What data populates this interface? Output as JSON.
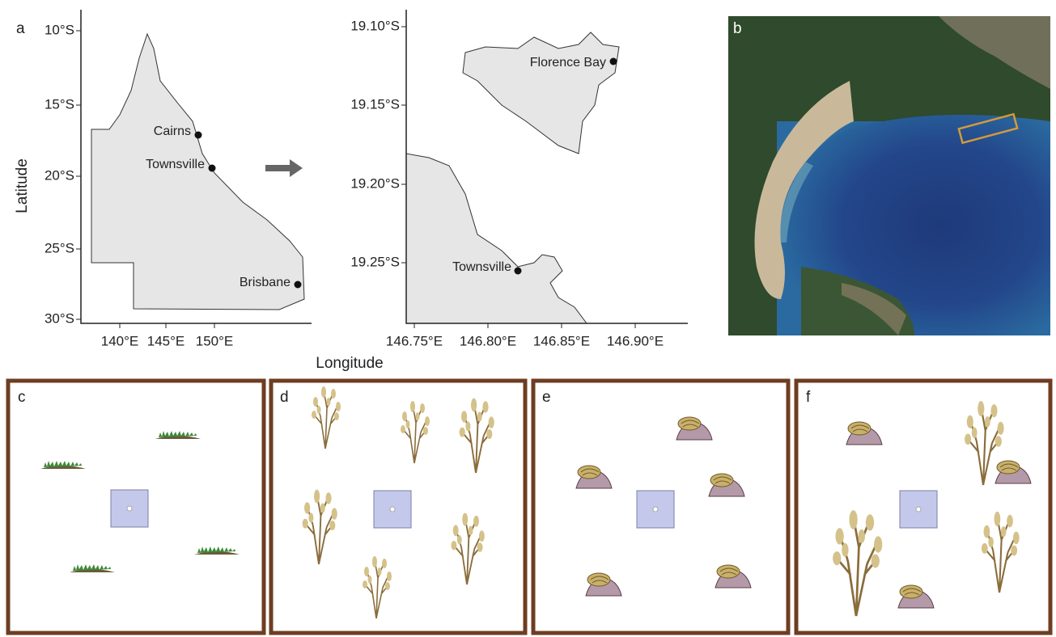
{
  "panel_labels": {
    "a": "a",
    "b": "b",
    "c": "c",
    "d": "d",
    "e": "e",
    "f": "f"
  },
  "map_a": {
    "y_ticks": [
      "10°S",
      "15°S",
      "20°S",
      "25°S",
      "30°S"
    ],
    "x_ticks": [
      "140°E",
      "145°E",
      "150°E"
    ],
    "places": [
      "Cairns",
      "Townsville",
      "Brisbane"
    ]
  },
  "map_inset": {
    "y_ticks": [
      "19.10°S",
      "19.15°S",
      "19.20°S",
      "19.25°S"
    ],
    "x_ticks": [
      "146.75°E",
      "146.80°E",
      "146.85°E",
      "146.90°E"
    ],
    "places": [
      "Florence Bay",
      "Townsville"
    ]
  },
  "axis_labels": {
    "y": "Latitude",
    "x": "Longitude"
  }
}
